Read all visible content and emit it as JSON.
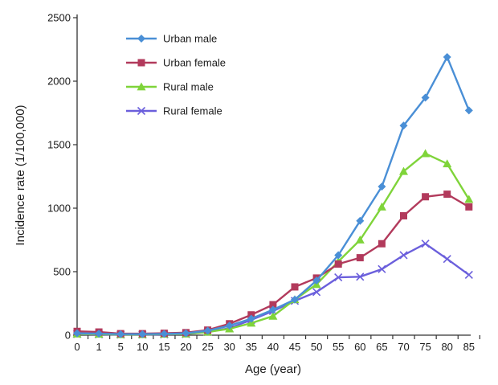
{
  "chart_data": {
    "type": "line",
    "title": "",
    "xlabel": "Age (year)",
    "ylabel": "Incidence rate (1/100,000)",
    "categories": [
      "0",
      "1",
      "5",
      "10",
      "15",
      "20",
      "25",
      "30",
      "35",
      "40",
      "45",
      "50",
      "55",
      "60",
      "65",
      "70",
      "75",
      "80",
      "85"
    ],
    "yticks": [
      "0",
      "500",
      "1000",
      "1500",
      "2000",
      "2500"
    ],
    "ylim": [
      0,
      2500
    ],
    "grid": false,
    "legend_position": "top-left",
    "series": [
      {
        "name": "Urban male",
        "color": "#4A8FD6",
        "marker": "diamond",
        "values": [
          15,
          12,
          8,
          8,
          10,
          15,
          35,
          75,
          130,
          200,
          280,
          430,
          630,
          900,
          1170,
          1650,
          1870,
          2190,
          1770
        ]
      },
      {
        "name": "Urban female",
        "color": "#B23A5C",
        "marker": "square",
        "values": [
          30,
          25,
          12,
          12,
          15,
          20,
          40,
          90,
          160,
          240,
          380,
          450,
          560,
          610,
          720,
          940,
          1090,
          1110,
          1010
        ]
      },
      {
        "name": "Rural male",
        "color": "#7FD43A",
        "marker": "triangle",
        "values": [
          10,
          8,
          5,
          5,
          8,
          10,
          25,
          50,
          95,
          150,
          280,
          400,
          580,
          750,
          1010,
          1290,
          1430,
          1350,
          1070
        ]
      },
      {
        "name": "Rural female",
        "color": "#6B5FDC",
        "marker": "x",
        "values": [
          8,
          6,
          4,
          4,
          6,
          8,
          25,
          55,
          120,
          190,
          270,
          340,
          455,
          460,
          520,
          630,
          720,
          600,
          475
        ]
      }
    ]
  }
}
